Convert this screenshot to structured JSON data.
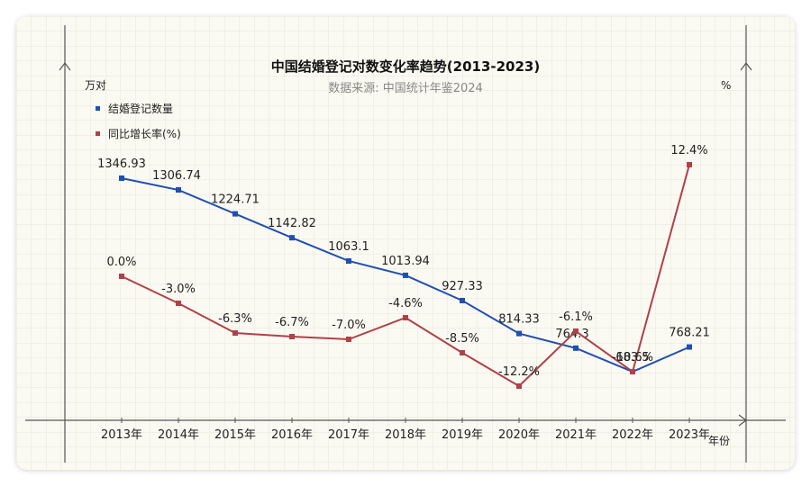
{
  "chart_data": {
    "type": "line",
    "title": "中国结婚登记对数变化率趋势(2013-2023)",
    "subtitle": "数据来源: 中国统计年鉴2024",
    "xlabel": "年份",
    "ylabel_left": "万对",
    "ylabel_right": "%",
    "categories": [
      "2013年",
      "2014年",
      "2015年",
      "2016年",
      "2017年",
      "2018年",
      "2019年",
      "2020年",
      "2021年",
      "2022年",
      "2023年"
    ],
    "series": [
      {
        "name": "结婚登记数量",
        "axis": "left",
        "color": "#1f4fb0",
        "values": [
          1346.93,
          1306.74,
          1224.71,
          1142.82,
          1063.1,
          1013.94,
          927.33,
          814.33,
          764.3,
          683.5,
          768.21
        ],
        "labels": [
          "1346.93",
          "1306.74",
          "1224.71",
          "1142.82",
          "1063.1",
          "1013.94",
          "927.33",
          "814.33",
          "764.3",
          "683.5",
          "768.21"
        ]
      },
      {
        "name": "同比增长率(%)",
        "axis": "right",
        "color": "#b0404a",
        "values": [
          0.0,
          -3.0,
          -6.3,
          -6.7,
          -7.0,
          -4.6,
          -8.5,
          -12.2,
          -6.1,
          -10.6,
          12.4
        ],
        "labels": [
          "0.0%",
          "-3.0%",
          "-6.3%",
          "-6.7%",
          "-7.0%",
          "-4.6%",
          "-8.5%",
          "-12.2%",
          "-6.1%",
          "-10.6%",
          "12.4%"
        ]
      }
    ],
    "legend_position": "top-left",
    "grid": true
  }
}
